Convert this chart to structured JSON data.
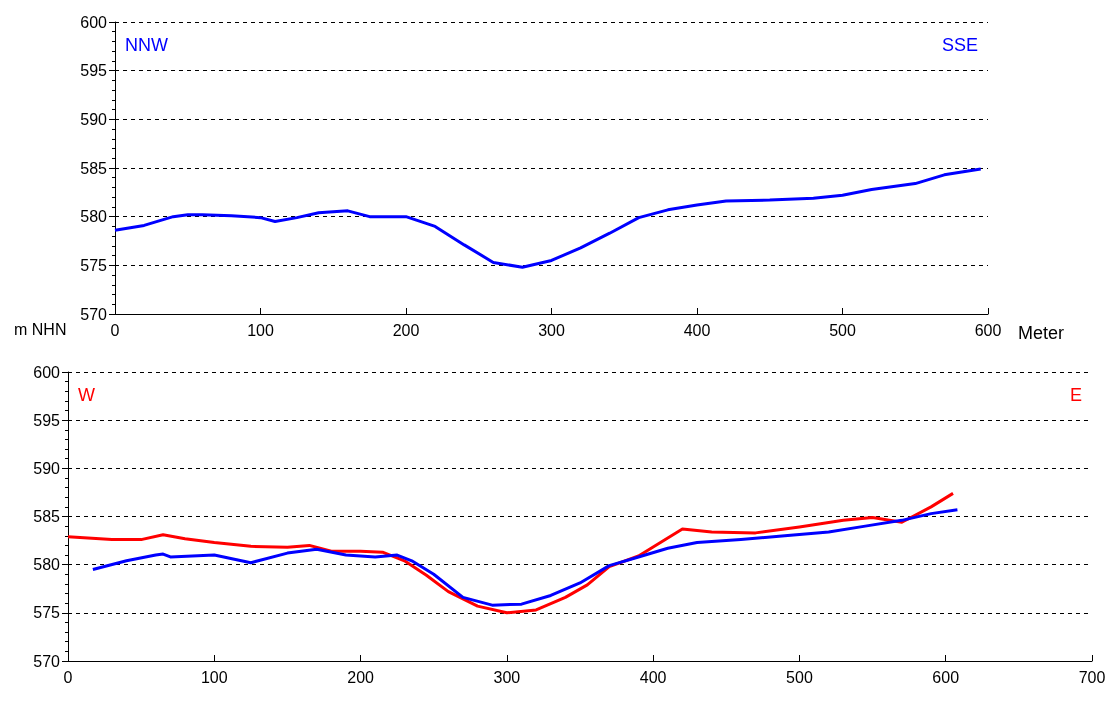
{
  "chart_data": [
    {
      "type": "line",
      "xlabel": "Meter",
      "ylabel": "m NHN",
      "annotations": [
        "NNW",
        "SSE"
      ],
      "xlim": [
        0,
        600
      ],
      "xticks": [
        0,
        100,
        200,
        300,
        400,
        500,
        600
      ],
      "ylim": [
        570,
        600
      ],
      "yticks": [
        570,
        575,
        580,
        585,
        590,
        595,
        600
      ],
      "grid": "y",
      "marker": "none",
      "line_style": "solid",
      "series": [
        {
          "color": "#0000ff",
          "x": [
            0,
            20,
            40,
            50,
            60,
            80,
            100,
            110,
            125,
            140,
            160,
            175,
            200,
            220,
            240,
            260,
            280,
            300,
            320,
            340,
            360,
            380,
            400,
            420,
            450,
            480,
            500,
            520,
            550,
            570,
            595
          ],
          "values": [
            578.6,
            579.1,
            580.0,
            580.2,
            580.2,
            580.1,
            579.9,
            579.5,
            579.9,
            580.4,
            580.6,
            580.0,
            580.0,
            579.0,
            577.1,
            575.3,
            574.8,
            575.5,
            576.8,
            578.3,
            579.9,
            580.7,
            581.2,
            581.6,
            581.7,
            581.9,
            582.2,
            582.8,
            583.4,
            584.3,
            584.9
          ]
        }
      ]
    },
    {
      "type": "line",
      "annotations": [
        "W",
        "E"
      ],
      "xlim": [
        0,
        700
      ],
      "xticks": [
        0,
        100,
        200,
        300,
        400,
        500,
        600,
        700
      ],
      "ylim": [
        570,
        600
      ],
      "yticks": [
        570,
        575,
        580,
        585,
        590,
        595,
        600
      ],
      "grid": "y",
      "marker": "none",
      "line_style": "solid",
      "series": [
        {
          "color": "#ff0000",
          "x": [
            0,
            30,
            50,
            65,
            80,
            100,
            125,
            150,
            165,
            180,
            200,
            215,
            230,
            245,
            260,
            280,
            300,
            320,
            340,
            355,
            370,
            390,
            405,
            420,
            440,
            470,
            500,
            530,
            550,
            570,
            590,
            605
          ],
          "values": [
            582.9,
            582.6,
            582.6,
            583.1,
            582.7,
            582.3,
            581.9,
            581.8,
            582.0,
            581.4,
            581.4,
            581.3,
            580.4,
            578.9,
            577.2,
            575.7,
            575.0,
            575.3,
            576.6,
            577.9,
            579.8,
            580.9,
            582.3,
            583.7,
            583.4,
            583.3,
            583.9,
            584.6,
            584.9,
            584.4,
            586.0,
            587.4
          ]
        },
        {
          "color": "#0000ff",
          "x": [
            17,
            40,
            60,
            65,
            70,
            100,
            125,
            150,
            170,
            190,
            210,
            225,
            235,
            250,
            270,
            290,
            310,
            330,
            350,
            370,
            390,
            410,
            430,
            460,
            490,
            520,
            545,
            570,
            590,
            608
          ],
          "values": [
            579.5,
            580.4,
            581.0,
            581.1,
            580.8,
            581.0,
            580.2,
            581.2,
            581.6,
            581.0,
            580.8,
            581.0,
            580.4,
            579.0,
            576.6,
            575.8,
            575.9,
            576.8,
            578.1,
            579.9,
            580.8,
            581.7,
            582.3,
            582.6,
            583.0,
            583.4,
            584.0,
            584.6,
            585.3,
            585.7
          ]
        }
      ]
    }
  ]
}
